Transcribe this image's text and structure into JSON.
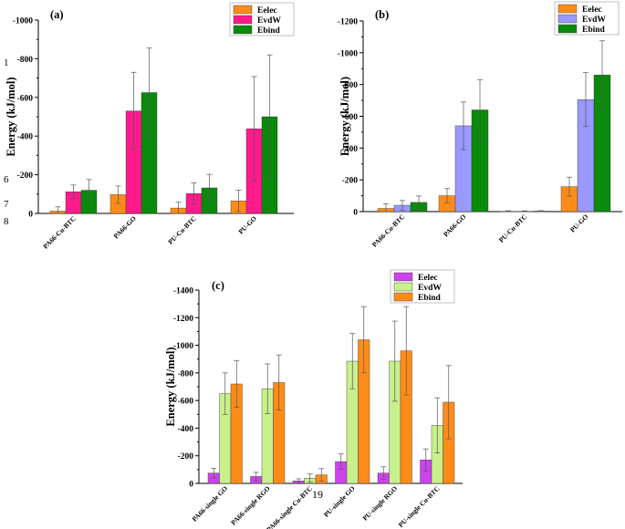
{
  "page_number": "19",
  "stray_marks": [
    "1",
    "7",
    "8",
    "6"
  ],
  "chart_data": [
    {
      "type": "bar",
      "panel_label": "(a)",
      "ylabel": "Energy (kJ/mol)",
      "xlabel": "",
      "ylim": [
        0,
        -1000
      ],
      "yticks": [
        "0",
        "-200",
        "-400",
        "-600",
        "-800",
        "-1000"
      ],
      "categories": [
        "PA66-Cu-BTC",
        "PA66-GO",
        "PU-Cu-BTC",
        "PU-GO"
      ],
      "series": [
        {
          "name": "Eelec",
          "color": "#ff8c1a",
          "values": [
            -12,
            -97,
            -28,
            -65
          ],
          "errors": [
            22,
            45,
            30,
            55
          ]
        },
        {
          "name": "EvdW",
          "color": "#ff1a8c",
          "values": [
            -112,
            -530,
            -103,
            -438
          ],
          "errors": [
            35,
            200,
            55,
            270
          ]
        },
        {
          "name": "Ebind",
          "color": "#0a8a0a",
          "values": [
            -120,
            -625,
            -132,
            -500
          ],
          "errors": [
            55,
            230,
            70,
            320
          ]
        }
      ],
      "legend": "top-right"
    },
    {
      "type": "bar",
      "panel_label": "(b)",
      "ylabel": "Energy (kJ/mol)",
      "xlabel": "",
      "ylim": [
        0,
        -1200
      ],
      "yticks": [
        "0",
        "-200",
        "-400",
        "-600",
        "-800",
        "-1000",
        "-1200"
      ],
      "categories": [
        "PA66-Cu-BTC",
        "PA66-GO",
        "PU-Cu-BTC",
        "PU-GO"
      ],
      "series": [
        {
          "name": "Eelec",
          "color": "#ff8c1a",
          "values": [
            -20,
            -100,
            -2,
            -157
          ],
          "errors": [
            30,
            45,
            3,
            60
          ]
        },
        {
          "name": "EvdW",
          "color": "#9999ff",
          "values": [
            -40,
            -540,
            -2,
            -705
          ],
          "errors": [
            30,
            150,
            3,
            170
          ]
        },
        {
          "name": "Ebind",
          "color": "#0a8a0a",
          "values": [
            -58,
            -640,
            -3,
            -860
          ],
          "errors": [
            40,
            190,
            3,
            215
          ]
        }
      ],
      "legend": "top-right"
    },
    {
      "type": "bar",
      "panel_label": "(c)",
      "ylabel": "Energy (kJ/mol)",
      "xlabel": "",
      "ylim": [
        0,
        -1400
      ],
      "yticks": [
        "0",
        "-200",
        "-400",
        "-600",
        "-800",
        "-1000",
        "-1200",
        "-1400"
      ],
      "categories": [
        "PA66-single GO",
        "PA66-single RGO",
        "PA66-single Cu-BTC",
        "PU-single GO",
        "PU-single RGO",
        "PU-single Cu-BTC"
      ],
      "series": [
        {
          "name": "Eelec",
          "color": "#cc44ee",
          "values": [
            -75,
            -50,
            -18,
            -158,
            -75,
            -170
          ],
          "errors": [
            35,
            30,
            15,
            55,
            45,
            80
          ]
        },
        {
          "name": "EvdW",
          "color": "#c8f08c",
          "values": [
            -650,
            -685,
            -38,
            -885,
            -885,
            -420
          ],
          "errors": [
            150,
            180,
            30,
            200,
            290,
            200
          ]
        },
        {
          "name": "Ebind",
          "color": "#ff8c1a",
          "values": [
            -720,
            -730,
            -62,
            -1040,
            -960,
            -588
          ],
          "errors": [
            170,
            200,
            45,
            240,
            320,
            265
          ]
        }
      ],
      "legend": "top-left"
    }
  ]
}
